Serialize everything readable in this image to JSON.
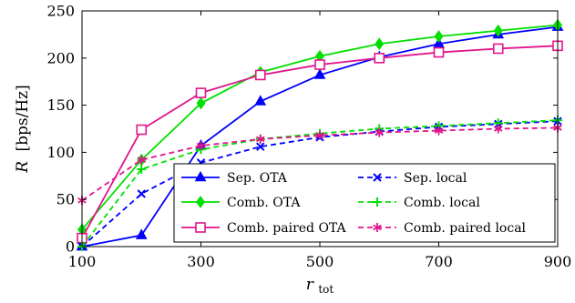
{
  "chart_data": {
    "type": "line",
    "xlabel": "r",
    "xlabel_sub": "tot",
    "ylabel": "R",
    "ylabel_unit": "[bps/Hz]",
    "xlim": [
      100,
      900
    ],
    "ylim": [
      0,
      250
    ],
    "xticks": [
      100,
      300,
      500,
      700,
      900
    ],
    "yticks": [
      0,
      50,
      100,
      150,
      200,
      250
    ],
    "grid": false,
    "legend_position": "bottom-right",
    "legend_columns": 2,
    "x": [
      100,
      200,
      300,
      400,
      500,
      600,
      700,
      800,
      900
    ],
    "series": [
      {
        "name": "Sep. OTA",
        "color": "#0000ff",
        "dash": "solid",
        "marker": "triangle",
        "values": [
          0,
          12,
          107,
          154,
          182,
          201,
          215,
          225,
          233
        ]
      },
      {
        "name": "Comb. OTA",
        "color": "#00e000",
        "dash": "solid",
        "marker": "diamond",
        "values": [
          18,
          92,
          152,
          185,
          202,
          215,
          223,
          229,
          235
        ]
      },
      {
        "name": "Comb. paired OTA",
        "color": "#e0168a",
        "dash": "solid",
        "marker": "square",
        "values": [
          9,
          124,
          163,
          182,
          193,
          200,
          206,
          210,
          213
        ]
      },
      {
        "name": "Sep. local",
        "color": "#0000ff",
        "dash": "dashed",
        "marker": "x",
        "values": [
          0,
          56,
          89,
          106,
          116,
          122,
          127,
          130,
          133
        ]
      },
      {
        "name": "Comb. local",
        "color": "#00e000",
        "dash": "dashed",
        "marker": "plus",
        "values": [
          0,
          82,
          103,
          114,
          120,
          125,
          128,
          131,
          134
        ]
      },
      {
        "name": "Comb. paired local",
        "color": "#e0168a",
        "dash": "dashed",
        "marker": "star",
        "values": [
          49,
          92,
          107,
          114,
          118,
          121,
          123,
          125,
          126
        ]
      }
    ],
    "legend_order": [
      0,
      3,
      1,
      4,
      2,
      5
    ]
  }
}
